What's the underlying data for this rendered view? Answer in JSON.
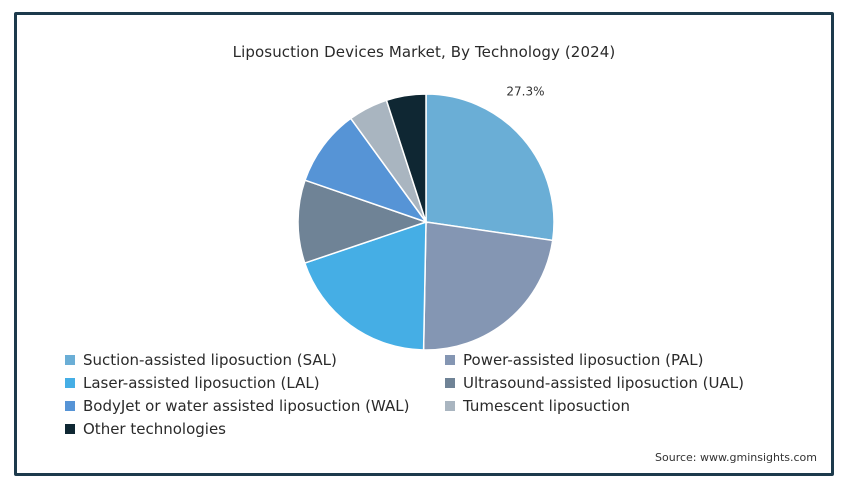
{
  "chart_data": {
    "type": "pie",
    "title": "Liposuction Devices Market, By Technology (2024)",
    "slices": [
      {
        "name": "Suction-assisted liposuction (SAL)",
        "value": 27.3,
        "label": "27.3%",
        "color": "#6aaed6"
      },
      {
        "name": "Power-assisted liposuction (PAL)",
        "value": 23.0,
        "label": "",
        "color": "#8496b3"
      },
      {
        "name": "Laser-assisted liposuction (LAL)",
        "value": 19.5,
        "label": "",
        "color": "#45aee5"
      },
      {
        "name": "Ultrasound-assisted liposuction (UAL)",
        "value": 10.5,
        "label": "",
        "color": "#6f8396"
      },
      {
        "name": "BodyJet or water assisted liposuction (WAL)",
        "value": 9.7,
        "label": "",
        "color": "#5694d6"
      },
      {
        "name": "Tumescent liposuction",
        "value": 5.0,
        "label": "",
        "color": "#a9b5c0"
      },
      {
        "name": "Other technologies",
        "value": 5.0,
        "label": "",
        "color": "#0f2733"
      }
    ],
    "start_angle_deg": 0,
    "direction": "clockwise",
    "legend_position": "bottom"
  },
  "source": "Source: www.gminsights.com"
}
